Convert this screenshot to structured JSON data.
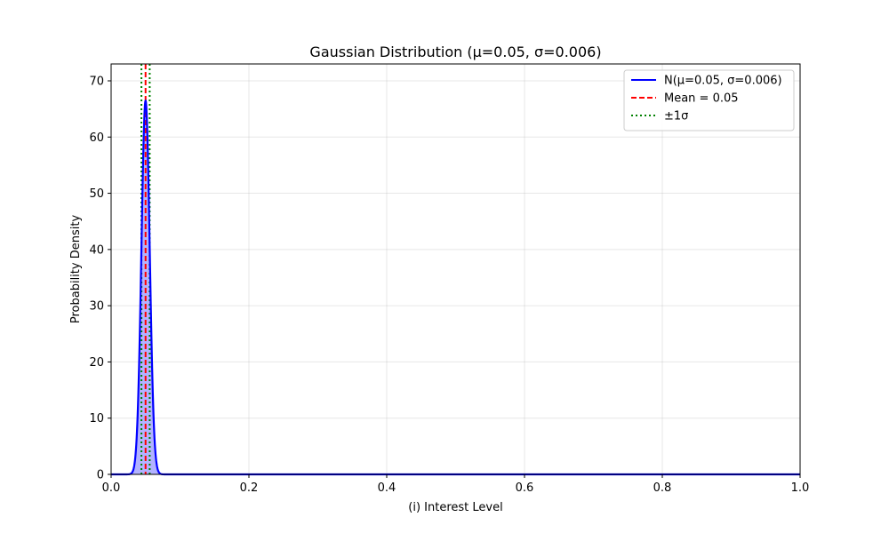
{
  "chart_data": {
    "type": "line",
    "title": "Gaussian Distribution (μ=0.05, σ=0.006)",
    "xlabel": "(i) Interest Level",
    "ylabel": "Probability Density",
    "xlim": [
      0,
      1
    ],
    "ylim": [
      0,
      73
    ],
    "x_ticks": [
      0.0,
      0.2,
      0.4,
      0.6,
      0.8,
      1.0
    ],
    "x_tick_labels": [
      "0.0",
      "0.2",
      "0.4",
      "0.6",
      "0.8",
      "1.0"
    ],
    "y_ticks": [
      0,
      10,
      20,
      30,
      40,
      50,
      60,
      70
    ],
    "y_tick_labels": [
      "0",
      "10",
      "20",
      "30",
      "40",
      "50",
      "60",
      "70"
    ],
    "grid": true,
    "legend_position": "top-right",
    "series": [
      {
        "name": "N(μ=0.05, σ=0.006)",
        "kind": "gaussian-pdf",
        "mu": 0.05,
        "sigma": 0.006,
        "color": "#0000ff",
        "fill_color": "#0000ff",
        "fill_opacity": 0.3
      }
    ],
    "reference_lines": [
      {
        "name": "Mean = 0.05",
        "x": 0.05,
        "color": "#ff0000",
        "style": "dashed"
      },
      {
        "name": "±1σ",
        "x": 0.044,
        "color": "#008000",
        "style": "dotted"
      },
      {
        "name": "±1σ",
        "x": 0.056,
        "color": "#008000",
        "style": "dotted"
      }
    ],
    "legend": [
      {
        "label": "N(μ=0.05, σ=0.006)",
        "color": "#0000ff",
        "style": "solid"
      },
      {
        "label": "Mean = 0.05",
        "color": "#ff0000",
        "style": "dashed"
      },
      {
        "label": "±1σ",
        "color": "#008000",
        "style": "dotted"
      }
    ]
  }
}
